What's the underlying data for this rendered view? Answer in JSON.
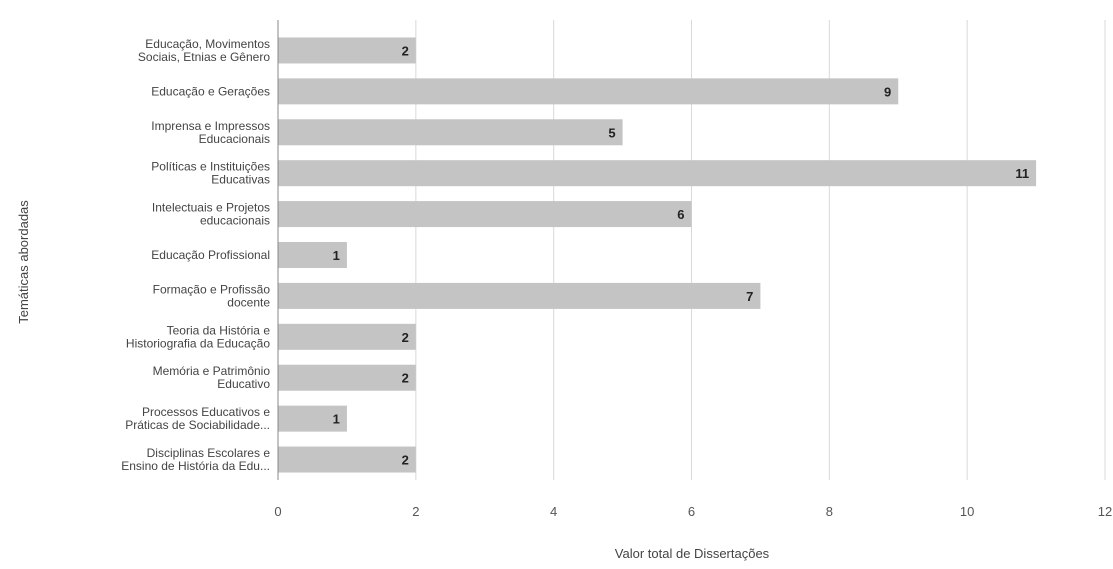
{
  "chart_data": {
    "type": "bar",
    "orientation": "horizontal",
    "categories": [
      [
        "Educação, Movimentos",
        "Sociais, Etnias e Gênero"
      ],
      [
        "Educação  e Gerações"
      ],
      [
        "Imprensa e Impressos",
        "Educacionais"
      ],
      [
        "Políticas e Instituições",
        "Educativas"
      ],
      [
        "Intelectuais e Projetos",
        "educacionais"
      ],
      [
        "Educação  Profissional"
      ],
      [
        "Formação e Profissão",
        "docente"
      ],
      [
        "Teoria da História e",
        "Historiografia da Educação"
      ],
      [
        "Memória e Patrimônio",
        "Educativo"
      ],
      [
        "Processos Educativos e",
        "Práticas de Sociabilidade..."
      ],
      [
        "Disciplinas Escolares  e",
        "Ensino de História da Edu..."
      ]
    ],
    "values": [
      2,
      9,
      5,
      11,
      6,
      1,
      7,
      2,
      2,
      1,
      2
    ],
    "xlabel": "Valor total de Dissertações",
    "ylabel": "Temáticas abordadas",
    "xlim": [
      0,
      12
    ],
    "xticks": [
      0,
      2,
      4,
      6,
      8,
      10,
      12
    ],
    "grid": true,
    "data_labels": true,
    "colors": {
      "bar": "#c4c4c4",
      "grid": "#d9d9d9",
      "axis": "#888888"
    }
  }
}
